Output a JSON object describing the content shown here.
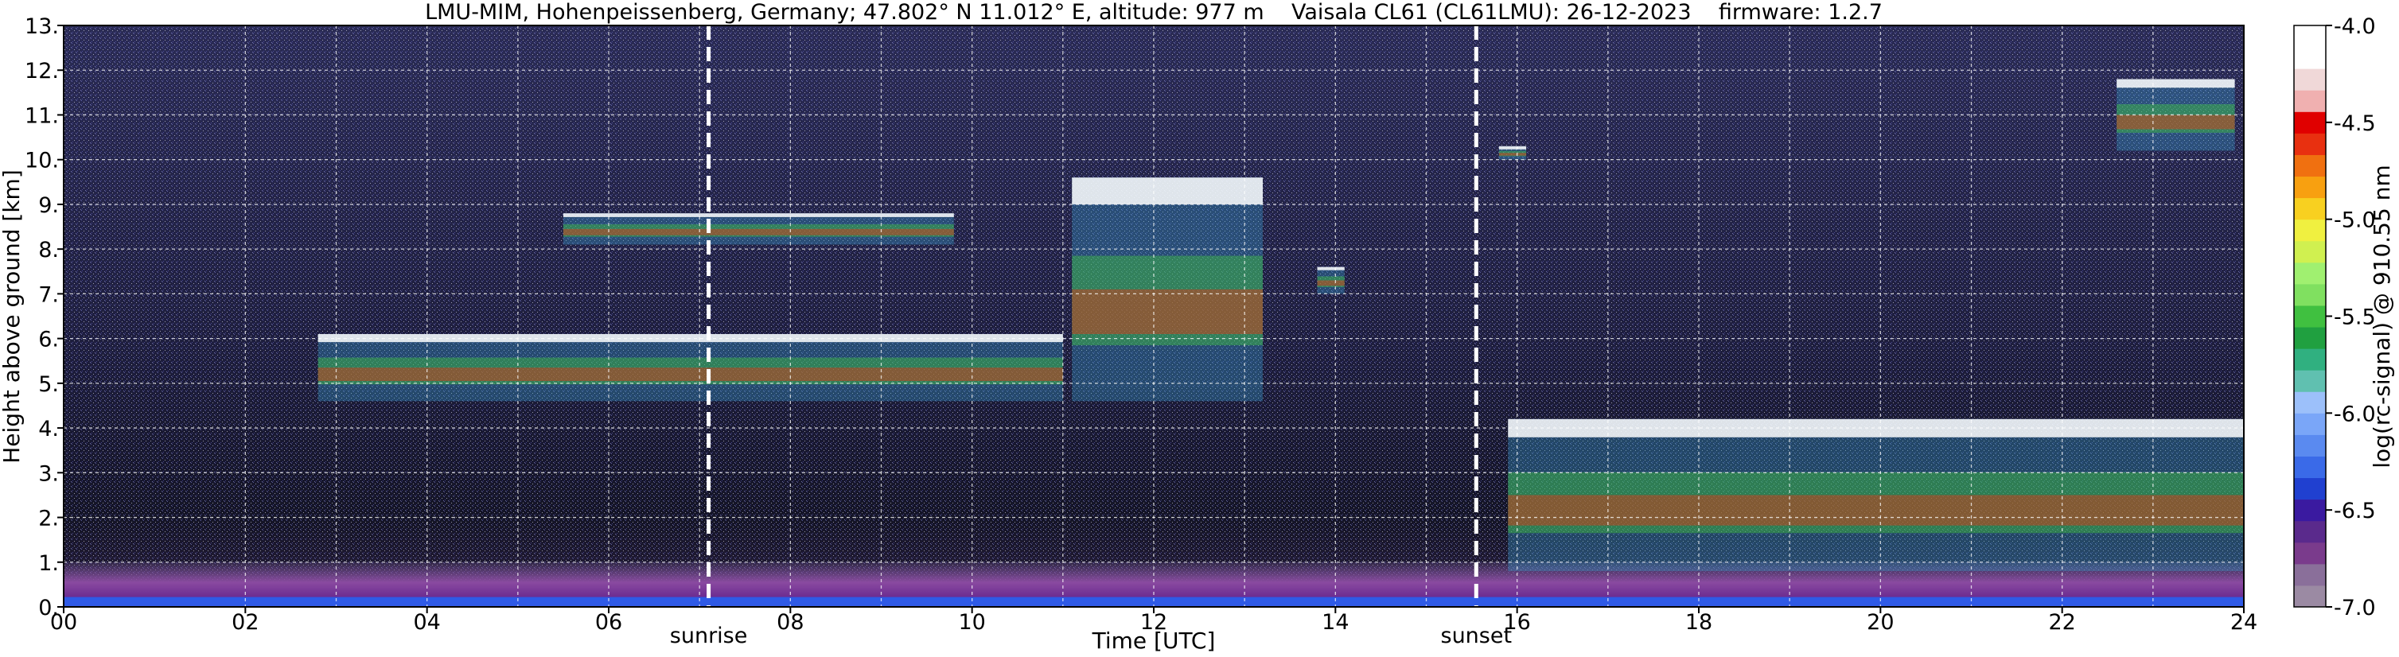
{
  "chart_data": {
    "type": "heatmap",
    "title": "LMU-MIM, Hohenpeissenberg, Germany; 47.802° N 11.012° E, altitude: 977 m    Vaisala CL61 (CL61LMU): 26-12-2023    firmware: 1.2.7",
    "xlabel": "Time [UTC]",
    "ylabel": "Height above ground [km]",
    "xlim": [
      0,
      24
    ],
    "ylim": [
      0,
      13
    ],
    "x_ticks": [
      "00",
      "02",
      "04",
      "06",
      "08",
      "10",
      "12",
      "14",
      "16",
      "18",
      "20",
      "22",
      "24"
    ],
    "y_ticks": [
      "0.",
      "1.",
      "2.",
      "3.",
      "4.",
      "5.",
      "6.",
      "7.",
      "8.",
      "9.",
      "10.",
      "11.",
      "12.",
      "13."
    ],
    "grid": true,
    "markers": [
      {
        "label": "sunrise",
        "time_utc": 7.1
      },
      {
        "label": "sunset",
        "time_utc": 15.55
      }
    ],
    "colorbar": {
      "label": "log(rc-signal) @ 910.55 nm",
      "range": [
        -7.0,
        -4.0
      ],
      "ticks": [
        "-7.0",
        "-6.5",
        "-6.0",
        "-5.5",
        "-5.0",
        "-4.5",
        "-4.0"
      ],
      "colors": [
        "#9b8aa3",
        "#8a6f9a",
        "#7a3b8c",
        "#5a2a8c",
        "#3a1aa0",
        "#2040d0",
        "#3a6ae8",
        "#5a8af0",
        "#7aa6f8",
        "#9cc0fa",
        "#60c0b0",
        "#30b080",
        "#20a040",
        "#40c040",
        "#80e060",
        "#a0f070",
        "#d0f050",
        "#f0f040",
        "#f8d020",
        "#f8a010",
        "#f07010",
        "#e83010",
        "#e00000",
        "#f0b0b0",
        "#f0d8d8",
        "#ffffff",
        "#ffffff"
      ]
    },
    "features": [
      {
        "name": "aerosol layer",
        "start": 0,
        "end": 24,
        "base_km": 0,
        "top_km": 1.0
      },
      {
        "name": "cloud layer",
        "start": 2.8,
        "end": 11.0,
        "base_km": 4.6,
        "top_km": 6.1
      },
      {
        "name": "cloud patches",
        "start": 5.5,
        "end": 9.8,
        "base_km": 8.1,
        "top_km": 8.8
      },
      {
        "name": "rising cloud",
        "start": 11.1,
        "end": 13.2,
        "base_km": 4.6,
        "top_km": 9.6
      },
      {
        "name": "cloud",
        "start": 13.8,
        "end": 14.1,
        "base_km": 7.0,
        "top_km": 7.6
      },
      {
        "name": "cloud",
        "start": 15.8,
        "end": 16.1,
        "base_km": 10.0,
        "top_km": 10.3
      },
      {
        "name": "descending cloud layer",
        "start": 15.9,
        "end": 24,
        "base_km": 0.8,
        "top_km": 4.2
      },
      {
        "name": "high cloud",
        "start": 22.6,
        "end": 23.9,
        "base_km": 10.2,
        "top_km": 11.8
      }
    ]
  }
}
